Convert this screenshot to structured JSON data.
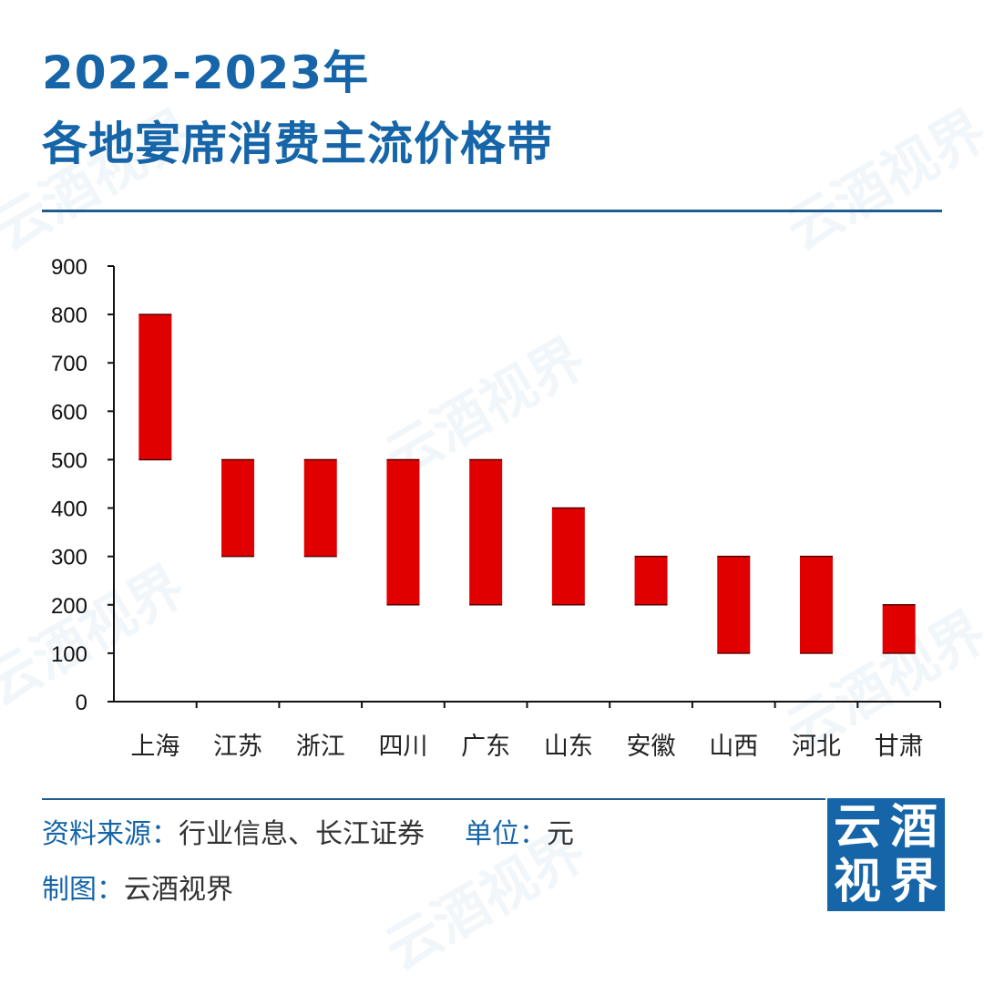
{
  "title": {
    "line1": "2022-2023年",
    "line2": "各地宴席消费主流价格带"
  },
  "colors": {
    "title": "#1565a8",
    "bar": "#e00000",
    "rule": "#1f5c8f",
    "logo_bg": "#1565a8"
  },
  "chart_data": {
    "type": "bar",
    "subtype": "floating-range",
    "title": "",
    "xlabel": "",
    "ylabel": "",
    "categories": [
      "上海",
      "江苏",
      "浙江",
      "四川",
      "广东",
      "山东",
      "安徽",
      "山西",
      "河北",
      "甘肃"
    ],
    "ranges": [
      [
        500,
        800
      ],
      [
        300,
        500
      ],
      [
        300,
        500
      ],
      [
        200,
        500
      ],
      [
        200,
        500
      ],
      [
        200,
        400
      ],
      [
        200,
        300
      ],
      [
        100,
        300
      ],
      [
        100,
        300
      ],
      [
        100,
        200
      ]
    ],
    "ylim": [
      0,
      900
    ],
    "yticks": [
      0,
      100,
      200,
      300,
      400,
      500,
      600,
      700,
      800,
      900
    ],
    "grid": false,
    "legend": "none",
    "color": "#e00000"
  },
  "footer": {
    "source_key": "资料来源：",
    "source_value": "行业信息、长江证券",
    "unit_key": "单位：",
    "unit_value": "元",
    "maker_key": "制图：",
    "maker_value": "云酒视界"
  },
  "logo": {
    "chars": [
      "云",
      "酒",
      "视",
      "界"
    ]
  },
  "watermark_text": "云酒视界"
}
